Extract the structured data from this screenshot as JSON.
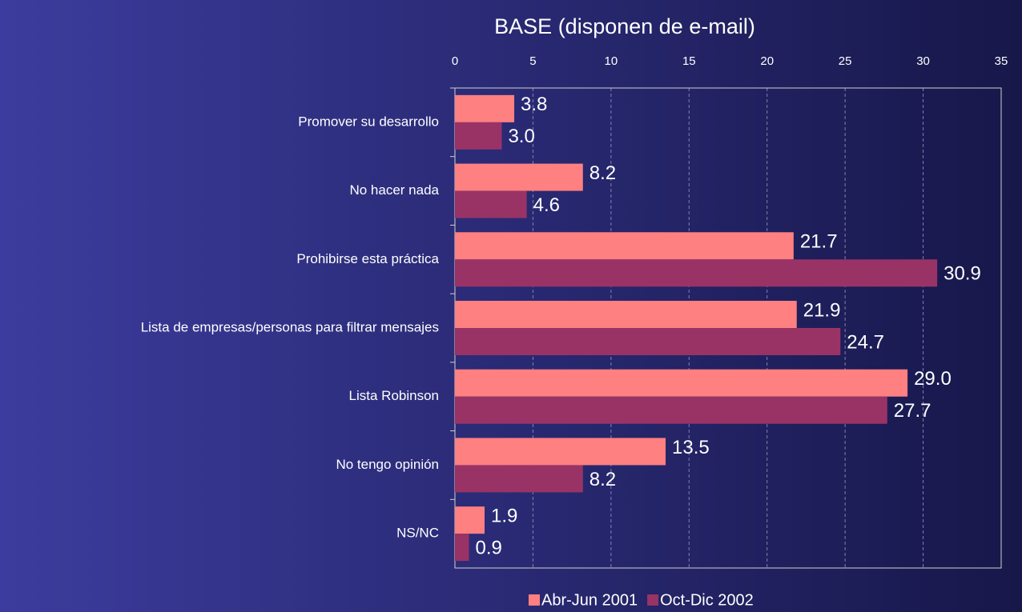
{
  "chart_data": {
    "type": "hbar",
    "title": "BASE (disponen de e-mail)",
    "categories": [
      "Promover su desarrollo",
      "No hacer nada",
      "Prohibirse esta práctica",
      "Lista de empresas/personas para filtrar mensajes",
      "Lista Robinson",
      "No tengo opinión",
      "NS/NC"
    ],
    "series": [
      {
        "name": "Abr-Jun 2001",
        "color": "#ff8080",
        "values": [
          3.8,
          8.2,
          21.7,
          21.9,
          29.0,
          13.5,
          1.9
        ],
        "value_labels": [
          "3.8",
          "8.2",
          "21.7",
          "21.9",
          "29.0",
          "13.5",
          "1.9"
        ]
      },
      {
        "name": "Oct-Dic 2002",
        "color": "#993366",
        "values": [
          3.0,
          4.6,
          30.9,
          24.7,
          27.7,
          8.2,
          0.9
        ],
        "value_labels": [
          "3.0",
          "4.6",
          "30.9",
          "24.7",
          "27.7",
          "8.2",
          "0.9"
        ]
      }
    ],
    "xlim": [
      0,
      35
    ],
    "xticks": [
      0,
      5,
      10,
      15,
      20,
      25,
      30,
      35
    ],
    "grid": true,
    "legend": "bottom"
  }
}
